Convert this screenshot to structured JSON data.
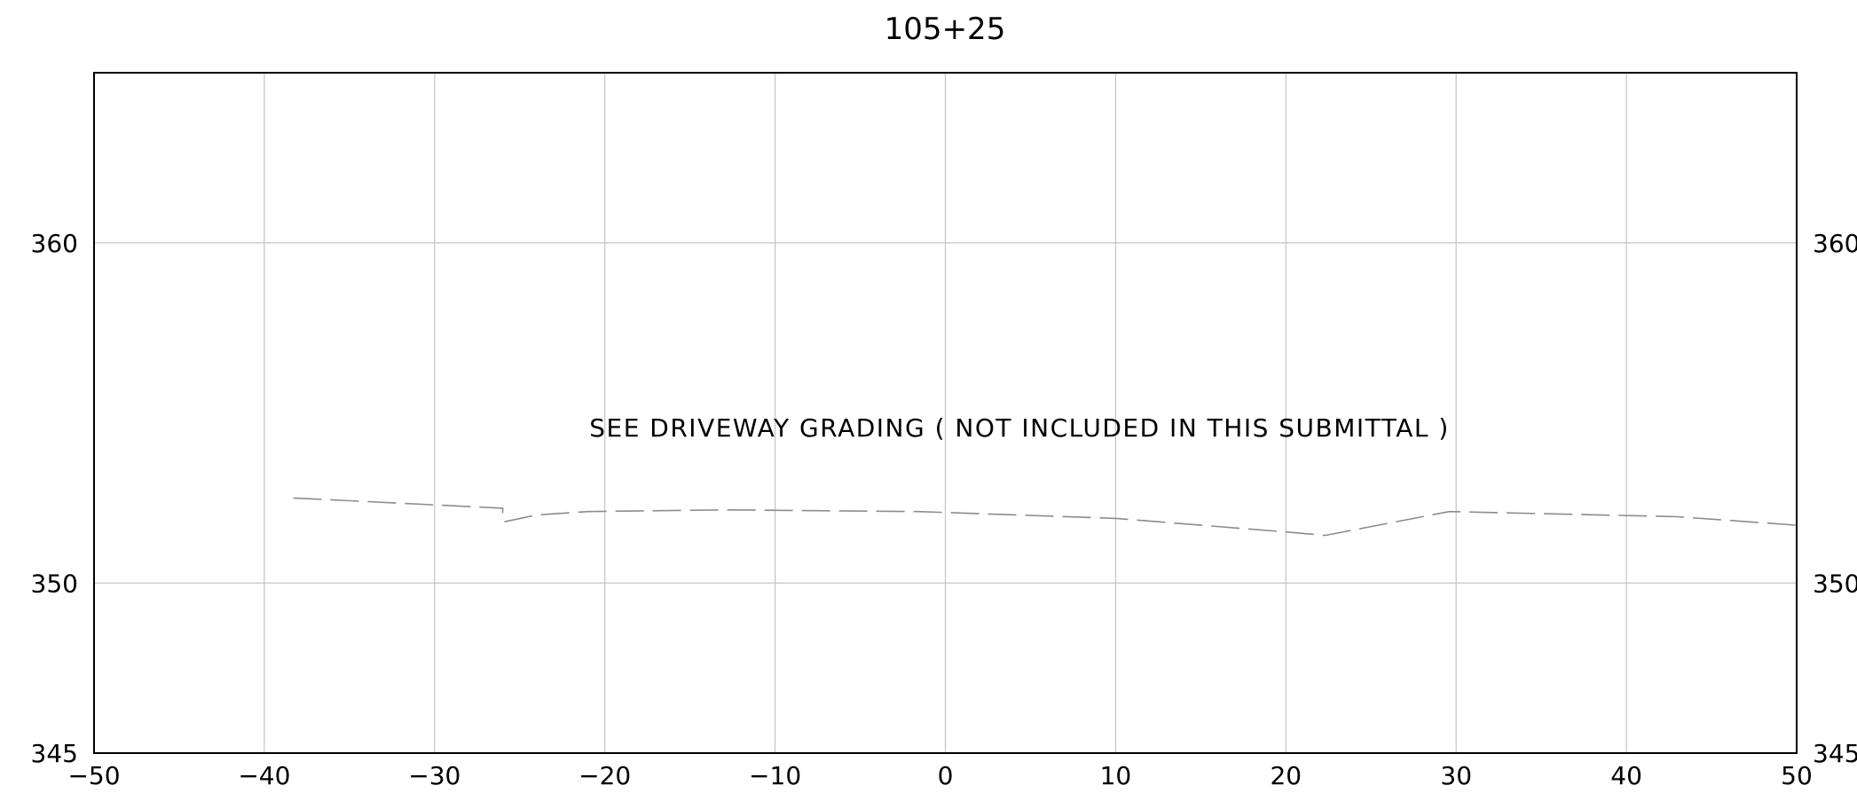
{
  "chart_data": {
    "type": "line",
    "title": "105+25",
    "annotation": "SEE DRIVEWAY GRADING ( NOT INCLUDED IN THIS SUBMITTAL )",
    "xlabel": "",
    "ylabel": "",
    "xlim": [
      -50,
      50
    ],
    "ylim": [
      345,
      365
    ],
    "grid": true,
    "x_ticks": [
      -50,
      -40,
      -30,
      -20,
      -10,
      0,
      10,
      20,
      30,
      40,
      50
    ],
    "x_tick_labels": [
      "−50",
      "−40",
      "−30",
      "−20",
      "−10",
      "0",
      "10",
      "20",
      "30",
      "40",
      "50"
    ],
    "y_ticks": [
      345,
      350,
      360
    ],
    "y_tick_labels": [
      "345",
      "350",
      "360"
    ],
    "series": [
      {
        "line_style": "dashed",
        "color": "#8c8c8c",
        "x": [
          -38.3,
          -30.2,
          -26,
          -26,
          -25.9,
          -24,
          -21,
          -13,
          -1.6,
          10,
          20,
          22.3,
          29.6,
          43,
          50
        ],
        "y": [
          352.5,
          352.3,
          352.2,
          352.0,
          351.8,
          352.0,
          352.1,
          352.15,
          352.1,
          351.9,
          351.5,
          351.4,
          352.1,
          351.95,
          351.7
        ]
      }
    ],
    "colors": {
      "frame": "#000000",
      "grid": "#c4c4c4",
      "text": "#000000"
    }
  }
}
